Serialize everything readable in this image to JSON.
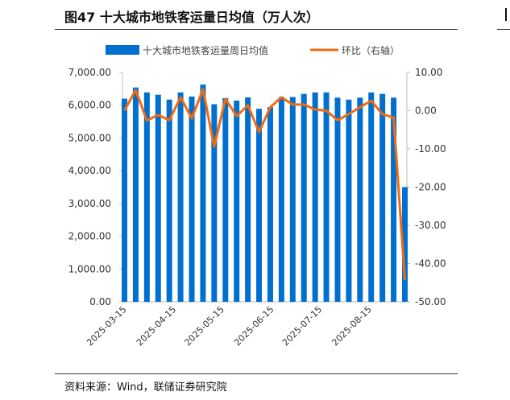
{
  "title": "图47 十大城市地铁客运量日均值（万人次）",
  "source": "资料来源：Wind，联储证券研究院",
  "chart_data": {
    "type": "bar+line",
    "series": [
      {
        "name": "十大城市地铁客运量周日均值",
        "type": "bar",
        "axis": "left",
        "color": "#0070d0",
        "values": [
          6200,
          6540,
          6390,
          6320,
          6170,
          6390,
          6265,
          6630,
          6030,
          6215,
          6140,
          6240,
          5890,
          5940,
          6250,
          6250,
          6345,
          6390,
          6390,
          6230,
          6170,
          6230,
          6390,
          6345,
          6230,
          3500
        ]
      },
      {
        "name": "环比（右轴）",
        "type": "line",
        "axis": "right",
        "color": "#f26a10",
        "values": [
          0,
          5.4,
          -2.6,
          -1.1,
          -2.5,
          3.5,
          -2,
          5.6,
          -9.4,
          3.1,
          -1.4,
          1.4,
          -5.6,
          0.9,
          3.5,
          1.6,
          1.6,
          0.3,
          0,
          -2.5,
          -0.9,
          0.9,
          2.6,
          -0.9,
          -1.8,
          -44.3
        ]
      }
    ],
    "x_tick_labels": [
      "2025-03-15",
      "2025-04-15",
      "2025-05-15",
      "2025-06-15",
      "2025-07-15",
      "2025-08-15"
    ],
    "y_left": {
      "ylim": [
        0,
        7000
      ],
      "ticks": [
        "0.00",
        "1,000.00",
        "2,000.00",
        "3,000.00",
        "4,000.00",
        "5,000.00",
        "6,000.00",
        "7,000.00"
      ]
    },
    "y_right": {
      "ylim": [
        -50,
        10
      ],
      "ticks": [
        "-50.00",
        "-40.00",
        "-30.00",
        "-20.00",
        "-10.00",
        "0.00",
        "10.00"
      ]
    },
    "legend": "top",
    "grid": false
  }
}
